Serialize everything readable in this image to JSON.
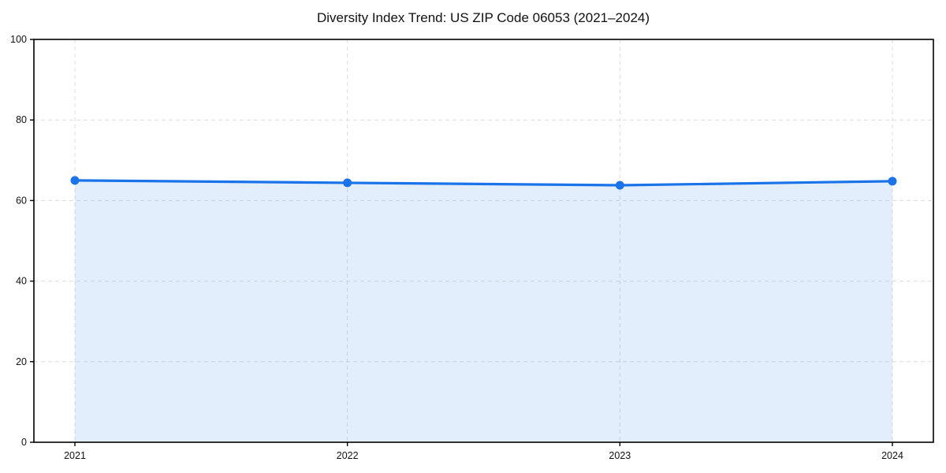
{
  "page": {
    "background": "#ffffff"
  },
  "chart_data": {
    "type": "line",
    "title": "Diversity Index Trend: US ZIP Code 06053 (2021–2024)",
    "categories": [
      "2021",
      "2022",
      "2023",
      "2024"
    ],
    "series": [
      {
        "name": "Diversity Index",
        "values": [
          65.0,
          64.4,
          63.8,
          64.8
        ]
      }
    ],
    "xlabel": "",
    "ylabel": "",
    "ylim": [
      0,
      100
    ],
    "yticks": [
      0,
      20,
      40,
      60,
      80,
      100
    ],
    "grid": "dashed, horizontal and vertical",
    "legend_position": "none",
    "marker": "circle",
    "area_fill": true,
    "colors": {
      "line": "#1a73e8",
      "area_fill_base": "#1a73e8",
      "area_fill_opacity": 0.12,
      "grid": "#dddddd",
      "axis": "#000000",
      "text": "#111111",
      "background": "#ffffff"
    }
  }
}
